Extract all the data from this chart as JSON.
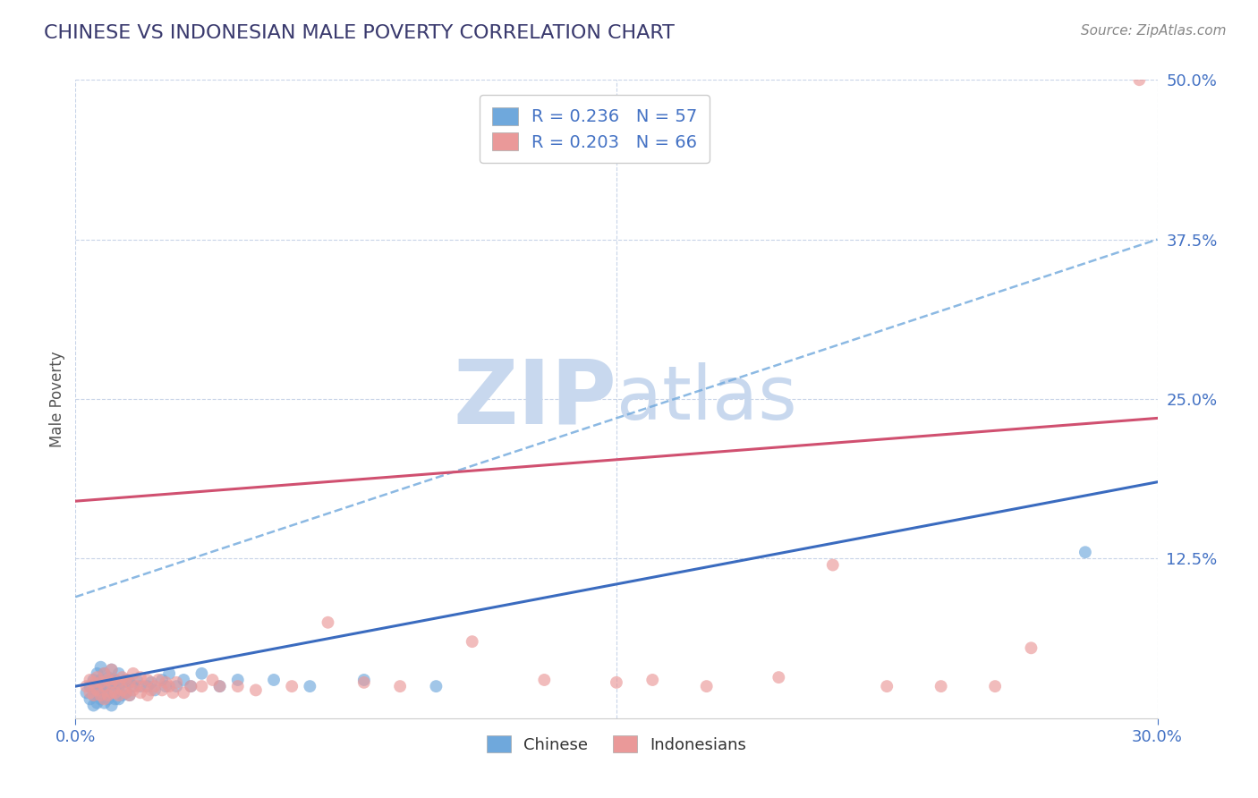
{
  "title": "CHINESE VS INDONESIAN MALE POVERTY CORRELATION CHART",
  "source_text": "Source: ZipAtlas.com",
  "ylabel": "Male Poverty",
  "xlim": [
    0.0,
    0.3
  ],
  "ylim": [
    0.0,
    0.5
  ],
  "xtick_labels": [
    "0.0%",
    "30.0%"
  ],
  "xtick_positions": [
    0.0,
    0.3
  ],
  "ytick_labels": [
    "12.5%",
    "25.0%",
    "37.5%",
    "50.0%"
  ],
  "ytick_positions": [
    0.125,
    0.25,
    0.375,
    0.5
  ],
  "title_color": "#3a3a6e",
  "title_fontsize": 16,
  "tick_color": "#4472c4",
  "legend_r1": "R = 0.236",
  "legend_n1": "N = 57",
  "legend_r2": "R = 0.203",
  "legend_n2": "N = 66",
  "chinese_color": "#6fa8dc",
  "indonesian_color": "#ea9999",
  "trendline_chinese_solid_color": "#3a6bbf",
  "trendline_chinese_dashed_color": "#6fa8dc",
  "trendline_indonesian_color": "#d05070",
  "watermark_color": "#c8d8ee",
  "background_color": "#ffffff",
  "grid_color": "#c8d4e8",
  "chinese_scatter_x": [
    0.003,
    0.004,
    0.004,
    0.005,
    0.005,
    0.005,
    0.006,
    0.006,
    0.006,
    0.006,
    0.007,
    0.007,
    0.007,
    0.007,
    0.008,
    0.008,
    0.008,
    0.008,
    0.009,
    0.009,
    0.009,
    0.01,
    0.01,
    0.01,
    0.01,
    0.011,
    0.011,
    0.011,
    0.012,
    0.012,
    0.012,
    0.013,
    0.013,
    0.014,
    0.014,
    0.015,
    0.015,
    0.016,
    0.017,
    0.018,
    0.02,
    0.021,
    0.022,
    0.024,
    0.025,
    0.026,
    0.028,
    0.03,
    0.032,
    0.035,
    0.04,
    0.045,
    0.055,
    0.065,
    0.08,
    0.1,
    0.28
  ],
  "chinese_scatter_y": [
    0.02,
    0.015,
    0.025,
    0.01,
    0.018,
    0.03,
    0.012,
    0.02,
    0.028,
    0.035,
    0.015,
    0.022,
    0.03,
    0.04,
    0.012,
    0.018,
    0.025,
    0.035,
    0.015,
    0.025,
    0.032,
    0.01,
    0.02,
    0.03,
    0.038,
    0.015,
    0.022,
    0.03,
    0.015,
    0.025,
    0.035,
    0.018,
    0.028,
    0.02,
    0.03,
    0.018,
    0.028,
    0.025,
    0.03,
    0.025,
    0.025,
    0.028,
    0.022,
    0.03,
    0.025,
    0.035,
    0.025,
    0.03,
    0.025,
    0.035,
    0.025,
    0.03,
    0.03,
    0.025,
    0.03,
    0.025,
    0.13
  ],
  "indonesian_scatter_x": [
    0.003,
    0.004,
    0.004,
    0.005,
    0.005,
    0.006,
    0.006,
    0.007,
    0.007,
    0.008,
    0.008,
    0.008,
    0.009,
    0.009,
    0.01,
    0.01,
    0.01,
    0.011,
    0.011,
    0.012,
    0.012,
    0.013,
    0.013,
    0.014,
    0.014,
    0.015,
    0.015,
    0.016,
    0.016,
    0.017,
    0.018,
    0.018,
    0.019,
    0.02,
    0.02,
    0.021,
    0.022,
    0.023,
    0.024,
    0.025,
    0.026,
    0.027,
    0.028,
    0.03,
    0.032,
    0.035,
    0.038,
    0.04,
    0.045,
    0.05,
    0.06,
    0.07,
    0.08,
    0.09,
    0.11,
    0.13,
    0.15,
    0.16,
    0.175,
    0.195,
    0.21,
    0.225,
    0.24,
    0.255,
    0.265,
    0.295
  ],
  "indonesian_scatter_y": [
    0.025,
    0.02,
    0.03,
    0.018,
    0.028,
    0.022,
    0.032,
    0.018,
    0.028,
    0.015,
    0.025,
    0.035,
    0.018,
    0.03,
    0.02,
    0.028,
    0.038,
    0.02,
    0.03,
    0.018,
    0.028,
    0.022,
    0.032,
    0.02,
    0.03,
    0.018,
    0.028,
    0.022,
    0.035,
    0.025,
    0.02,
    0.032,
    0.025,
    0.018,
    0.03,
    0.022,
    0.025,
    0.03,
    0.022,
    0.028,
    0.025,
    0.02,
    0.028,
    0.02,
    0.025,
    0.025,
    0.03,
    0.025,
    0.025,
    0.022,
    0.025,
    0.075,
    0.028,
    0.025,
    0.06,
    0.03,
    0.028,
    0.03,
    0.025,
    0.032,
    0.12,
    0.025,
    0.025,
    0.025,
    0.055,
    0.5
  ],
  "chinese_solid_trend_x": [
    0.0,
    0.3
  ],
  "chinese_solid_trend_y": [
    0.025,
    0.185
  ],
  "chinese_dashed_trend_x": [
    0.0,
    0.3
  ],
  "chinese_dashed_trend_y": [
    0.095,
    0.375
  ],
  "indonesian_trend_x": [
    0.0,
    0.3
  ],
  "indonesian_trend_y": [
    0.17,
    0.235
  ],
  "bottom_legend_labels": [
    "Chinese",
    "Indonesians"
  ]
}
